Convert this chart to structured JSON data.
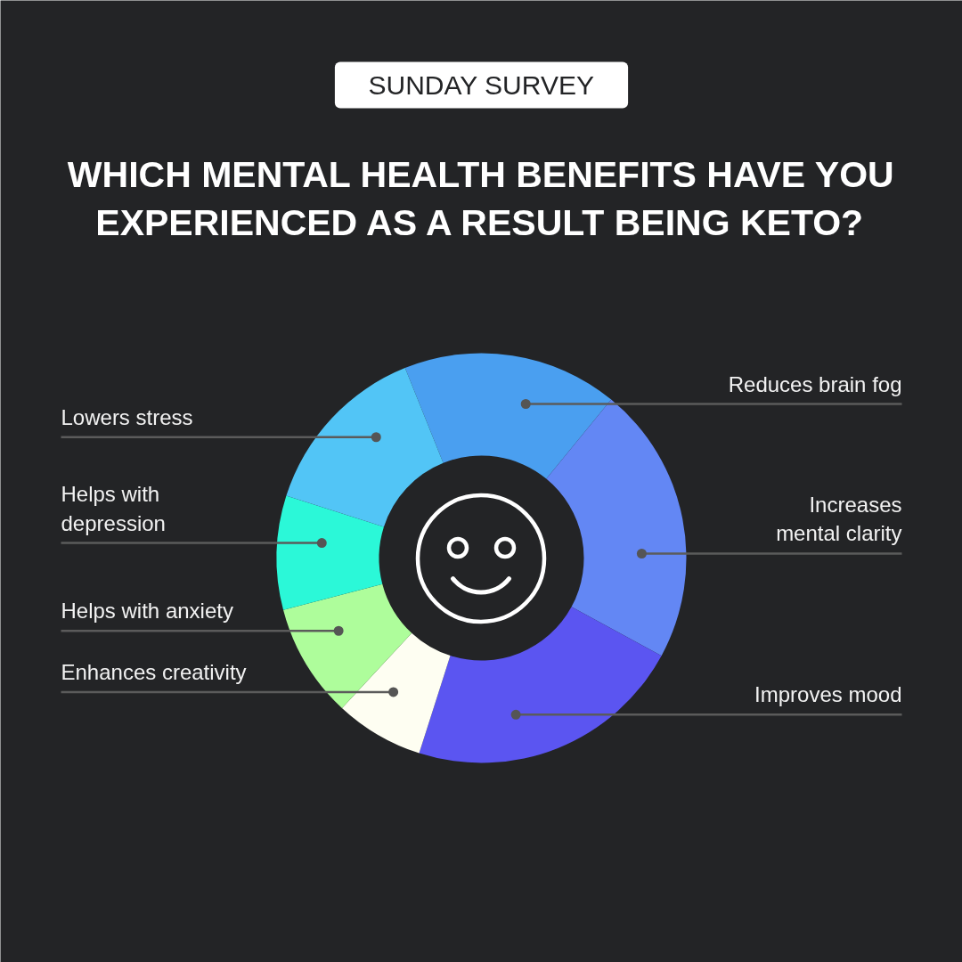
{
  "chart_data": {
    "type": "donut",
    "subtitle": "SUNDAY SURVEY",
    "title": "WHICH MENTAL HEALTH BENEFITS HAVE YOU EXPERIENCED AS A RESULT BEING KETO?",
    "categories": [
      "Reduces brain fog",
      "Increases mental clarity",
      "Improves mood",
      "Enhances creativity",
      "Helps with anxiety",
      "Helps with depression",
      "Lowers stress"
    ],
    "values": [
      17,
      22,
      22,
      7,
      9,
      9,
      14
    ],
    "colors": [
      "#4a9ff0",
      "#6387f4",
      "#5b55f1",
      "#fefef2",
      "#aefd9b",
      "#2bf8d8",
      "#52c5f6"
    ]
  }
}
